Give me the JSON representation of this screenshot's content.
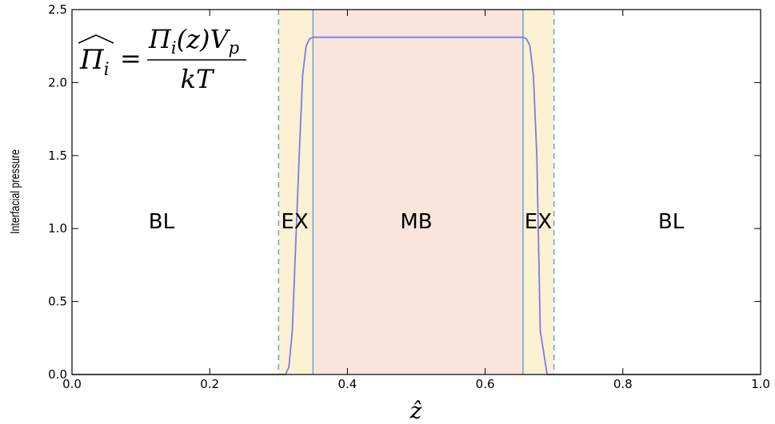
{
  "chart_data": {
    "type": "line",
    "title": "",
    "xlabel": "ẑ",
    "ylabel": "Interfacial pressure",
    "xlim": [
      0.0,
      1.0
    ],
    "ylim": [
      0.0,
      2.5
    ],
    "xticks": [
      "0.0",
      "0.2",
      "0.4",
      "0.6",
      "0.8",
      "1.0"
    ],
    "yticks": [
      "0.0",
      "0.5",
      "1.0",
      "1.5",
      "2.0",
      "2.5"
    ],
    "grid": false,
    "line_color": "#7b7bea",
    "series": [
      {
        "x": [
          0.0,
          0.3,
          0.31,
          0.315,
          0.32,
          0.33,
          0.335,
          0.34,
          0.345,
          0.35,
          0.655,
          0.66,
          0.665,
          0.67,
          0.675,
          0.68,
          0.69,
          0.7,
          1.0
        ],
        "y": [
          0.0,
          0.0,
          0.0,
          0.05,
          0.3,
          1.5,
          2.05,
          2.25,
          2.3,
          2.31,
          2.31,
          2.3,
          2.25,
          2.05,
          1.5,
          0.3,
          0.0,
          0.0,
          0.0
        ]
      }
    ],
    "regions": [
      {
        "x0": 0.3,
        "x1": 0.7,
        "color": "#fdf1d3"
      },
      {
        "x0": 0.35,
        "x1": 0.655,
        "color": "#f9e5dc"
      }
    ],
    "dashed_lines": [
      0.3,
      0.7
    ],
    "solid_lines": [
      0.35,
      0.655
    ],
    "vline_color": "#6fa8d6",
    "region_labels": [
      {
        "text": "BL",
        "x": 0.13,
        "y": 1.05
      },
      {
        "text": "EX",
        "x": 0.3235,
        "y": 1.05
      },
      {
        "text": "MB",
        "x": 0.5,
        "y": 1.05
      },
      {
        "text": "EX",
        "x": 0.677,
        "y": 1.05
      },
      {
        "text": "BL",
        "x": 0.87,
        "y": 1.05
      }
    ],
    "annotation": {
      "lhs": "Π",
      "lhs_sub": "i",
      "eq": "=",
      "numerator": "Π",
      "numerator_sub": "i",
      "numerator_mid": "(z)V",
      "numerator_sub2": "p",
      "denominator": "kT"
    }
  }
}
